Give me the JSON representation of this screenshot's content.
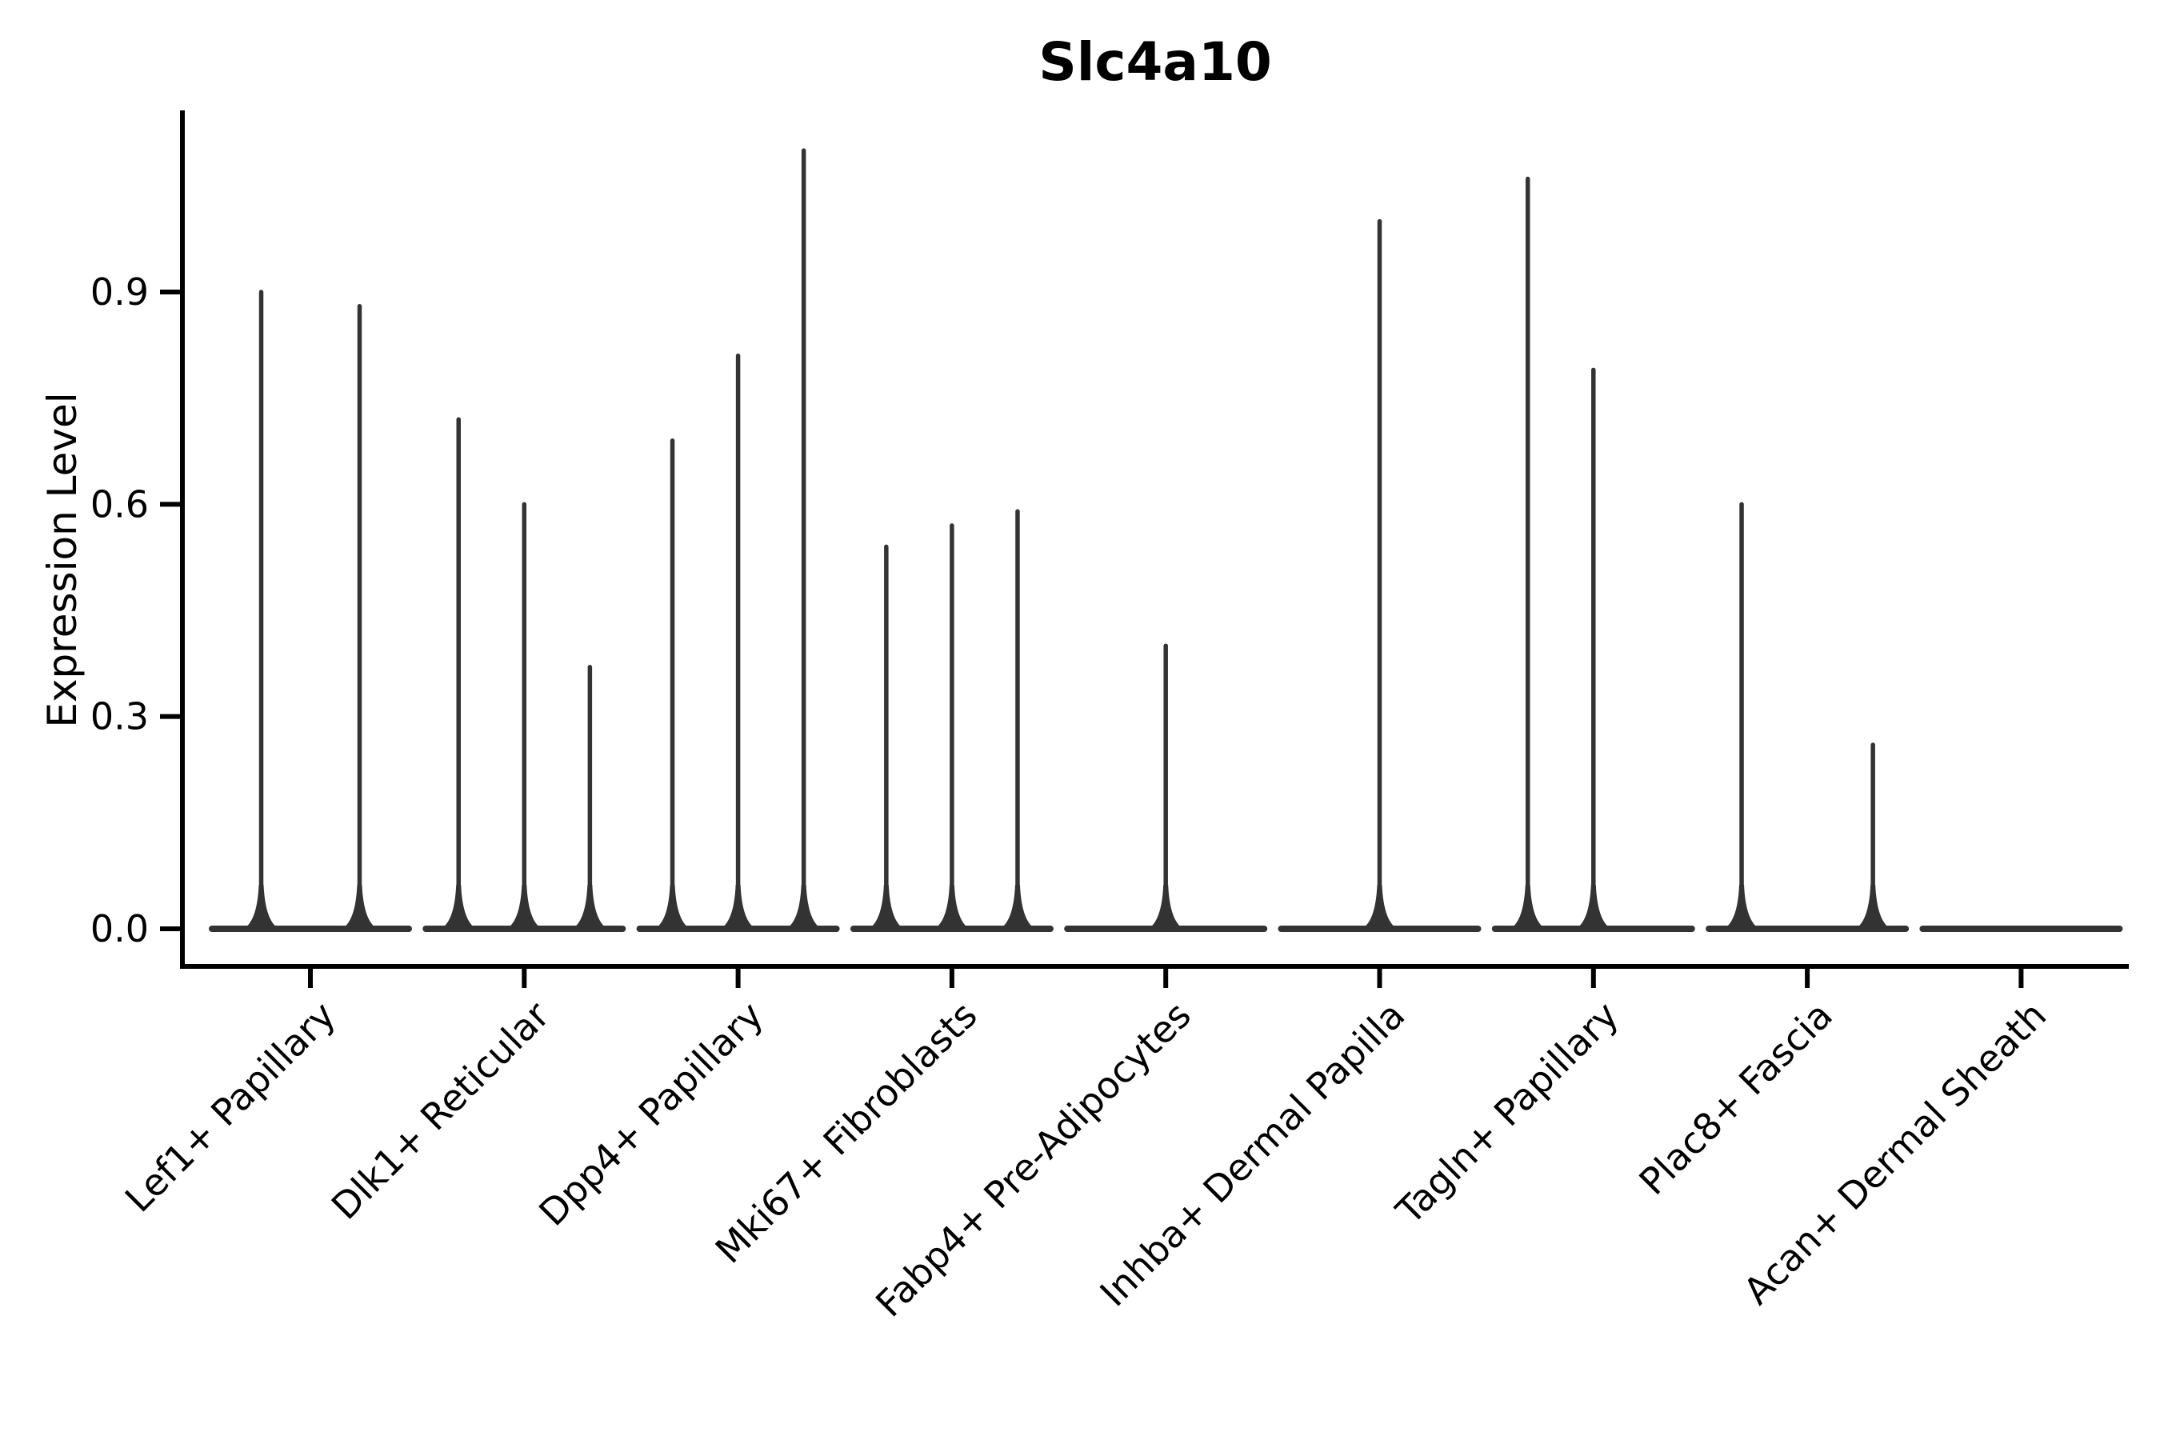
{
  "chart_data": {
    "type": "violin",
    "title": "Slc4a10",
    "ylabel": "Expression Level",
    "xlabel": "",
    "yticks": [
      "0.0",
      "0.3",
      "0.6",
      "0.9"
    ],
    "ytick_values": [
      0.0,
      0.3,
      0.6,
      0.9
    ],
    "ylim": [
      0,
      1.15
    ],
    "grid": false,
    "legend": false,
    "categories": [
      "Lef1+ Papillary",
      "Dlk1+ Reticular",
      "Dpp4+ Papillary",
      "Mki67+ Fibroblasts",
      "Fabp4+ Pre-Adipocytes",
      "Inhba+ Dermal Papilla",
      "Tagln+ Papillary",
      "Plac8+ Fascia",
      "Acan+ Dermal Sheath"
    ],
    "groups": [
      {
        "category": "Lef1+ Papillary",
        "spikes": [
          {
            "slot": -0.23,
            "max": 0.9
          },
          {
            "slot": 0.23,
            "max": 0.88
          }
        ]
      },
      {
        "category": "Dlk1+ Reticular",
        "spikes": [
          {
            "slot": -0.307,
            "max": 0.72
          },
          {
            "slot": 0,
            "max": 0.6
          },
          {
            "slot": 0.307,
            "max": 0.37
          }
        ]
      },
      {
        "category": "Dpp4+ Papillary",
        "spikes": [
          {
            "slot": -0.307,
            "max": 0.69
          },
          {
            "slot": 0,
            "max": 0.81
          },
          {
            "slot": 0.307,
            "max": 1.1
          }
        ]
      },
      {
        "category": "Mki67+ Fibroblasts",
        "spikes": [
          {
            "slot": -0.307,
            "max": 0.54
          },
          {
            "slot": 0,
            "max": 0.57
          },
          {
            "slot": 0.307,
            "max": 0.59
          }
        ]
      },
      {
        "category": "Fabp4+ Pre-Adipocytes",
        "spikes": [
          {
            "slot": 0,
            "max": 0.4
          }
        ]
      },
      {
        "category": "Inhba+ Dermal Papilla",
        "spikes": [
          {
            "slot": 0,
            "max": 1.0
          }
        ]
      },
      {
        "category": "Tagln+ Papillary",
        "spikes": [
          {
            "slot": -0.307,
            "max": 1.06
          },
          {
            "slot": 0,
            "max": 0.79
          }
        ]
      },
      {
        "category": "Plac8+ Fascia",
        "spikes": [
          {
            "slot": -0.307,
            "max": 0.6
          },
          {
            "slot": 0.307,
            "max": 0.26
          }
        ]
      },
      {
        "category": "Acan+ Dermal Sheath",
        "spikes": []
      }
    ],
    "colors": {
      "violin_line": "#333333",
      "axis": "#000000",
      "text": "#000000",
      "background": "#ffffff"
    }
  }
}
